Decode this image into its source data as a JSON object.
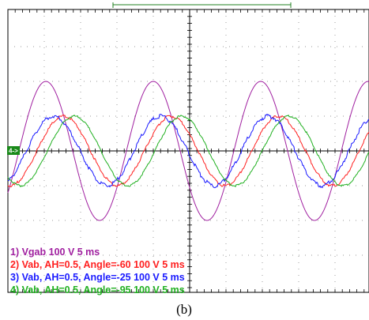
{
  "caption": "(b)",
  "ground_marker": "4->",
  "chart_data": {
    "type": "line",
    "title": "",
    "xlabel": "",
    "ylabel": "",
    "x_unit": "ms",
    "x_per_div": 5,
    "y_per_div_volts": 100,
    "xlim": [
      0,
      50
    ],
    "grid": true,
    "legend_position": "bottom-left",
    "series": [
      {
        "name": "1) Vgab  100  V    5 ms",
        "color": "#a020a0",
        "amplitude_div": 2.0,
        "phase_deg": 0,
        "noise": 0
      },
      {
        "name": "2) Vab, AH=0.5, Angle=-60  100  V   5 ms",
        "color": "#ff2020",
        "amplitude_div": 1.0,
        "phase_deg": -60,
        "noise": 0.04
      },
      {
        "name": "3) Vab, AH=0.5, Angle=-25  100  V   5 ms",
        "color": "#1a1aff",
        "amplitude_div": 1.0,
        "phase_deg": -25,
        "noise": 0.06
      },
      {
        "name": "4) Vab, AH=0.5, Angle=-95  100  V   5 ms",
        "color": "#20b020",
        "amplitude_div": 1.0,
        "phase_deg": -95,
        "noise": 0.03
      }
    ]
  }
}
